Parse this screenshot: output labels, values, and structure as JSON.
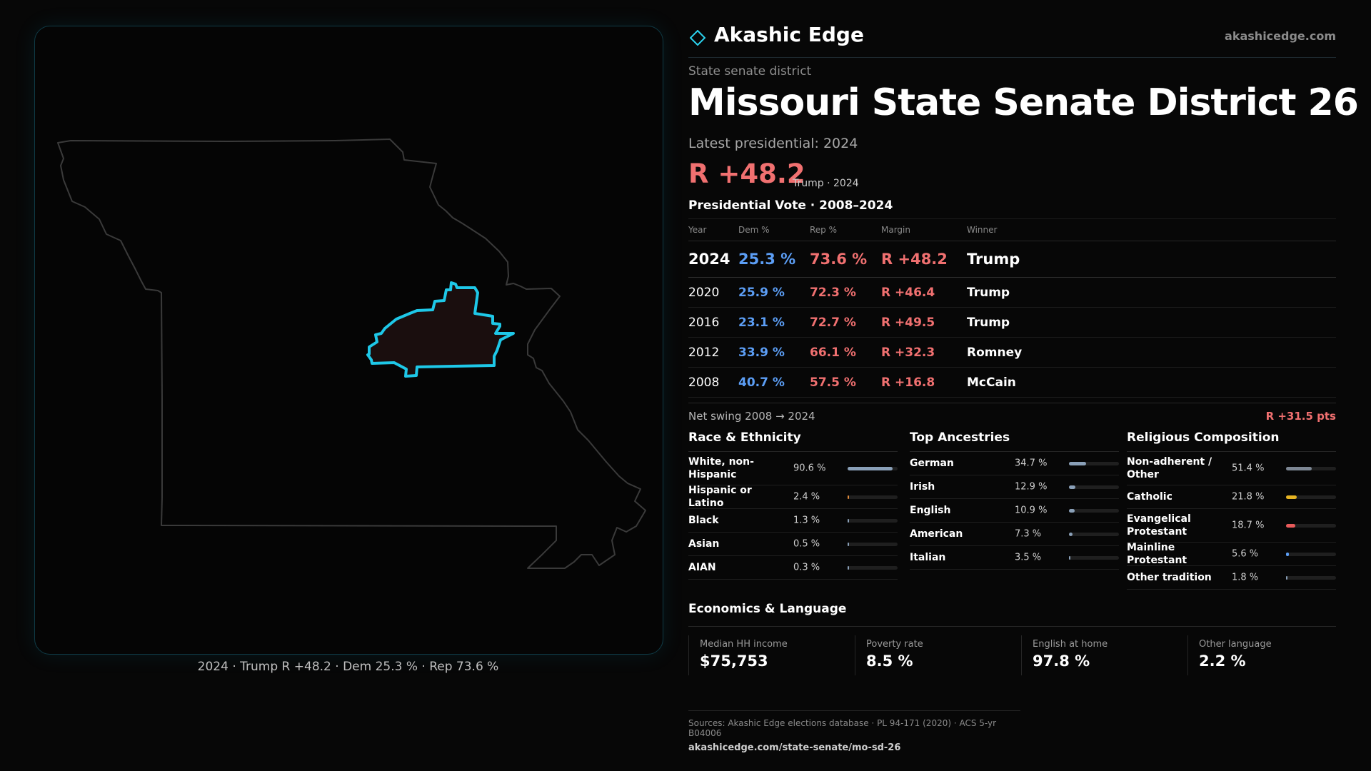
{
  "brand": {
    "name": "Akashic Edge",
    "url": "akashicedge.com",
    "accent": "#2bd3ef"
  },
  "kicker": "State senate district",
  "title": "Missouri State Senate District 26",
  "latest_label": "Latest presidential: 2024",
  "headline": {
    "margin": "R +48.2",
    "sub": "Trump · 2024"
  },
  "map": {
    "caption": "2024 · Trump R +48.2 · Dem 25.3 % · Rep 73.6 %",
    "state_outline_color": "#3a3a3a",
    "district_outline_color": "#1ec8e8",
    "district_fill_color": "#1a0e0e"
  },
  "presidential": {
    "title": "Presidential Vote · 2008–2024",
    "headers": {
      "year": "Year",
      "dem": "Dem %",
      "rep": "Rep %",
      "margin": "Margin",
      "winner": "Winner"
    },
    "rows": [
      {
        "year": "2024",
        "dem": "25.3 %",
        "rep": "73.6 %",
        "margin": "R +48.2",
        "winner": "Trump"
      },
      {
        "year": "2020",
        "dem": "25.9 %",
        "rep": "72.3 %",
        "margin": "R +46.4",
        "winner": "Trump"
      },
      {
        "year": "2016",
        "dem": "23.1 %",
        "rep": "72.7 %",
        "margin": "R +49.5",
        "winner": "Trump"
      },
      {
        "year": "2012",
        "dem": "33.9 %",
        "rep": "66.1 %",
        "margin": "R +32.3",
        "winner": "Romney"
      },
      {
        "year": "2008",
        "dem": "40.7 %",
        "rep": "57.5 %",
        "margin": "R +16.8",
        "winner": "McCain"
      }
    ],
    "net_swing": {
      "label": "Net swing 2008 → 2024",
      "value": "R +31.5 pts"
    }
  },
  "race": {
    "title": "Race & Ethnicity",
    "rows": [
      {
        "label": "White, non-Hispanic",
        "pct": "90.6 %",
        "fraction": 0.906,
        "color": "#8aa0b8"
      },
      {
        "label": "Hispanic or Latino",
        "pct": "2.4 %",
        "fraction": 0.024,
        "color": "#e08a3a"
      },
      {
        "label": "Black",
        "pct": "1.3 %",
        "fraction": 0.013,
        "color": "#8aa0b8"
      },
      {
        "label": "Asian",
        "pct": "0.5 %",
        "fraction": 0.005,
        "color": "#8aa0b8"
      },
      {
        "label": "AIAN",
        "pct": "0.3 %",
        "fraction": 0.003,
        "color": "#8aa0b8"
      }
    ]
  },
  "ancestry": {
    "title": "Top Ancestries",
    "rows": [
      {
        "label": "German",
        "pct": "34.7 %",
        "fraction": 0.347,
        "color": "#8aa0b8"
      },
      {
        "label": "Irish",
        "pct": "12.9 %",
        "fraction": 0.129,
        "color": "#8aa0b8"
      },
      {
        "label": "English",
        "pct": "10.9 %",
        "fraction": 0.109,
        "color": "#8aa0b8"
      },
      {
        "label": "American",
        "pct": "7.3 %",
        "fraction": 0.073,
        "color": "#8aa0b8"
      },
      {
        "label": "Italian",
        "pct": "3.5 %",
        "fraction": 0.035,
        "color": "#8aa0b8"
      }
    ]
  },
  "religion": {
    "title": "Religious Composition",
    "rows": [
      {
        "label": "Non-adherent / Other",
        "pct": "51.4 %",
        "fraction": 0.514,
        "color": "#7d8794"
      },
      {
        "label": "Catholic",
        "pct": "21.8 %",
        "fraction": 0.218,
        "color": "#e6b422"
      },
      {
        "label": "Evangelical Protestant",
        "pct": "18.7 %",
        "fraction": 0.187,
        "color": "#e85a5a"
      },
      {
        "label": "Mainline Protestant",
        "pct": "5.6 %",
        "fraction": 0.056,
        "color": "#5c9ef5"
      },
      {
        "label": "Other tradition",
        "pct": "1.8 %",
        "fraction": 0.018,
        "color": "#8aa0b8"
      }
    ]
  },
  "economics": {
    "title": "Economics & Language",
    "cards": [
      {
        "key": "Median HH income",
        "value": "$75,753"
      },
      {
        "key": "Poverty rate",
        "value": "8.5 %"
      },
      {
        "key": "English at home",
        "value": "97.8 %"
      },
      {
        "key": "Other language",
        "value": "2.2 %"
      }
    ]
  },
  "sources": {
    "line": "Sources: Akashic Edge elections database · PL 94-171 (2020) · ACS 5-yr B04006",
    "link": "akashicedge.com/state-senate/mo-sd-26"
  },
  "colors": {
    "dem": "#5c9ef5",
    "rep": "#f07070",
    "bg": "#070707"
  }
}
